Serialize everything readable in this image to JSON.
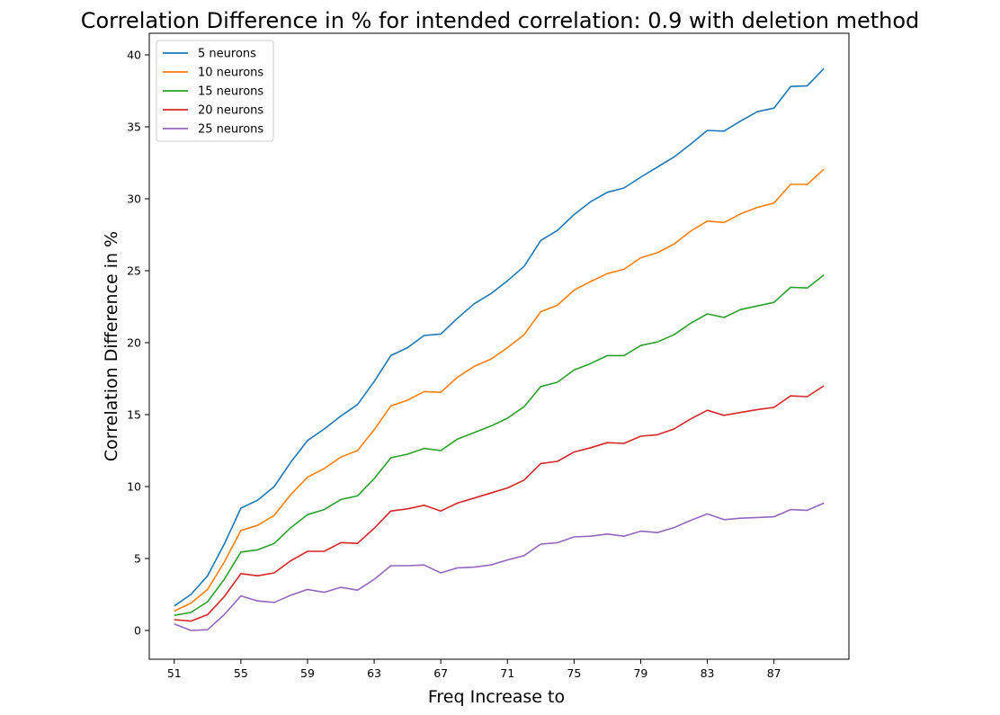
{
  "chart_data": {
    "type": "line",
    "title": "Correlation Difference in % for intended correlation:  0.9 with deletion method",
    "xlabel": "Freq Increase to",
    "ylabel": "Correlation Difference in %",
    "x": [
      51,
      52,
      53,
      54,
      55,
      56,
      57,
      58,
      59,
      60,
      61,
      62,
      63,
      64,
      65,
      66,
      67,
      68,
      69,
      70,
      71,
      72,
      73,
      74,
      75,
      76,
      77,
      78,
      79,
      80,
      81,
      82,
      83,
      84,
      85,
      86,
      87,
      88,
      89,
      90
    ],
    "xticks": [
      51,
      55,
      59,
      63,
      67,
      71,
      75,
      79,
      83,
      87
    ],
    "yticks": [
      0,
      5,
      10,
      15,
      20,
      25,
      30,
      35,
      40
    ],
    "xlim": [
      49.5,
      91.5
    ],
    "ylim": [
      -2,
      41.5
    ],
    "grid": false,
    "legend_position": "top-left",
    "series": [
      {
        "name": "5 neurons",
        "color": "#1f77b4",
        "values": [
          1.7,
          2.5,
          3.8,
          6.0,
          8.5,
          9.05,
          10.0,
          11.7,
          13.2,
          14.0,
          14.9,
          15.7,
          17.3,
          19.1,
          19.65,
          20.5,
          20.6,
          21.7,
          22.7,
          23.4,
          24.3,
          25.3,
          27.1,
          27.8,
          28.9,
          29.8,
          30.45,
          30.75,
          31.5,
          32.2,
          32.9,
          33.8,
          34.75,
          34.7,
          35.4,
          36.05,
          36.3,
          37.8,
          37.85,
          39.05
        ]
      },
      {
        "name": "10 neurons",
        "color": "#ff7f0e",
        "values": [
          1.35,
          1.9,
          2.85,
          4.75,
          6.95,
          7.3,
          8.0,
          9.45,
          10.65,
          11.25,
          12.05,
          12.5,
          13.95,
          15.6,
          16.0,
          16.6,
          16.55,
          17.6,
          18.35,
          18.85,
          19.65,
          20.55,
          22.15,
          22.6,
          23.65,
          24.25,
          24.8,
          25.1,
          25.9,
          26.25,
          26.85,
          27.75,
          28.45,
          28.35,
          28.95,
          29.4,
          29.7,
          31.0,
          31.0,
          32.05
        ]
      },
      {
        "name": "15 neurons",
        "color": "#2ca02c",
        "values": [
          1.05,
          1.25,
          2.0,
          3.55,
          5.45,
          5.6,
          6.05,
          7.15,
          8.05,
          8.4,
          9.1,
          9.35,
          10.55,
          12.0,
          12.25,
          12.65,
          12.5,
          13.3,
          13.75,
          14.2,
          14.75,
          15.55,
          16.95,
          17.25,
          18.1,
          18.55,
          19.1,
          19.1,
          19.8,
          20.05,
          20.55,
          21.35,
          22.0,
          21.75,
          22.3,
          22.55,
          22.8,
          23.85,
          23.8,
          24.7
        ]
      },
      {
        "name": "20 neurons",
        "color": "#d62728",
        "values": [
          0.75,
          0.65,
          1.1,
          2.35,
          3.95,
          3.8,
          4.0,
          4.85,
          5.5,
          5.5,
          6.1,
          6.05,
          7.1,
          8.3,
          8.45,
          8.7,
          8.3,
          8.85,
          9.2,
          9.55,
          9.9,
          10.45,
          11.6,
          11.75,
          12.4,
          12.7,
          13.05,
          13.0,
          13.5,
          13.6,
          14.0,
          14.7,
          15.3,
          14.95,
          15.15,
          15.35,
          15.5,
          16.3,
          16.25,
          17.0
        ]
      },
      {
        "name": "25 neurons",
        "color": "#9467bd",
        "values": [
          0.45,
          0.0,
          0.05,
          1.1,
          2.4,
          2.05,
          1.95,
          2.45,
          2.85,
          2.65,
          3.0,
          2.8,
          3.55,
          4.5,
          4.5,
          4.55,
          4.0,
          4.35,
          4.4,
          4.55,
          4.9,
          5.2,
          6.0,
          6.1,
          6.5,
          6.55,
          6.7,
          6.55,
          6.9,
          6.8,
          7.15,
          7.65,
          8.1,
          7.7,
          7.8,
          7.85,
          7.9,
          8.4,
          8.35,
          8.85
        ]
      }
    ]
  }
}
